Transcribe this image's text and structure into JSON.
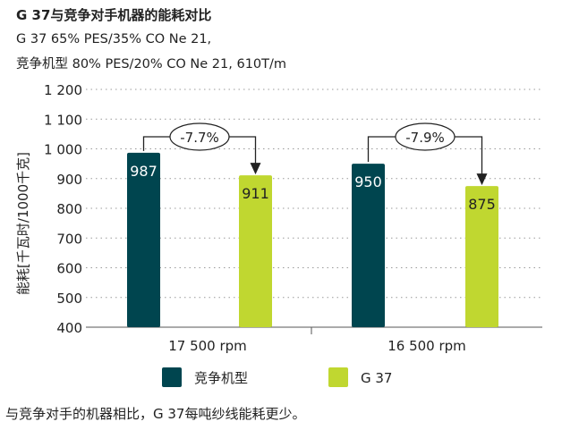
{
  "chart_data": {
    "type": "bar",
    "title": "G 37与竞争对手机器的能耗对比",
    "subtitle_lines": [
      "G 37 65% PES/35% CO Ne 21,",
      "竞争机型 80% PES/20% CO Ne 21, 610T/m"
    ],
    "ylabel": "能耗[千瓦时/1000千克]",
    "xlabel": "",
    "ylim": [
      400,
      1200
    ],
    "yticks": [
      400,
      500,
      600,
      700,
      800,
      900,
      1000,
      1100,
      1200
    ],
    "ytick_labels": [
      "400",
      "500",
      "600",
      "700",
      "800",
      "900",
      "1 000",
      "1 100",
      "1 200"
    ],
    "categories": [
      "17 500 rpm",
      "16 500 rpm"
    ],
    "series": [
      {
        "name": "竞争机型",
        "color": "#00454f",
        "label_color": "#ffffff",
        "values": [
          987,
          950
        ]
      },
      {
        "name": "G 37",
        "color": "#c0d730",
        "label_color": "#222222",
        "values": [
          911,
          875
        ]
      }
    ],
    "annotations": [
      "-7.7%",
      "-7.9%"
    ],
    "grid": true,
    "legend": "bottom"
  },
  "footnote": "与竞争对手的机器相比，G 37每吨纱线能耗更少。"
}
